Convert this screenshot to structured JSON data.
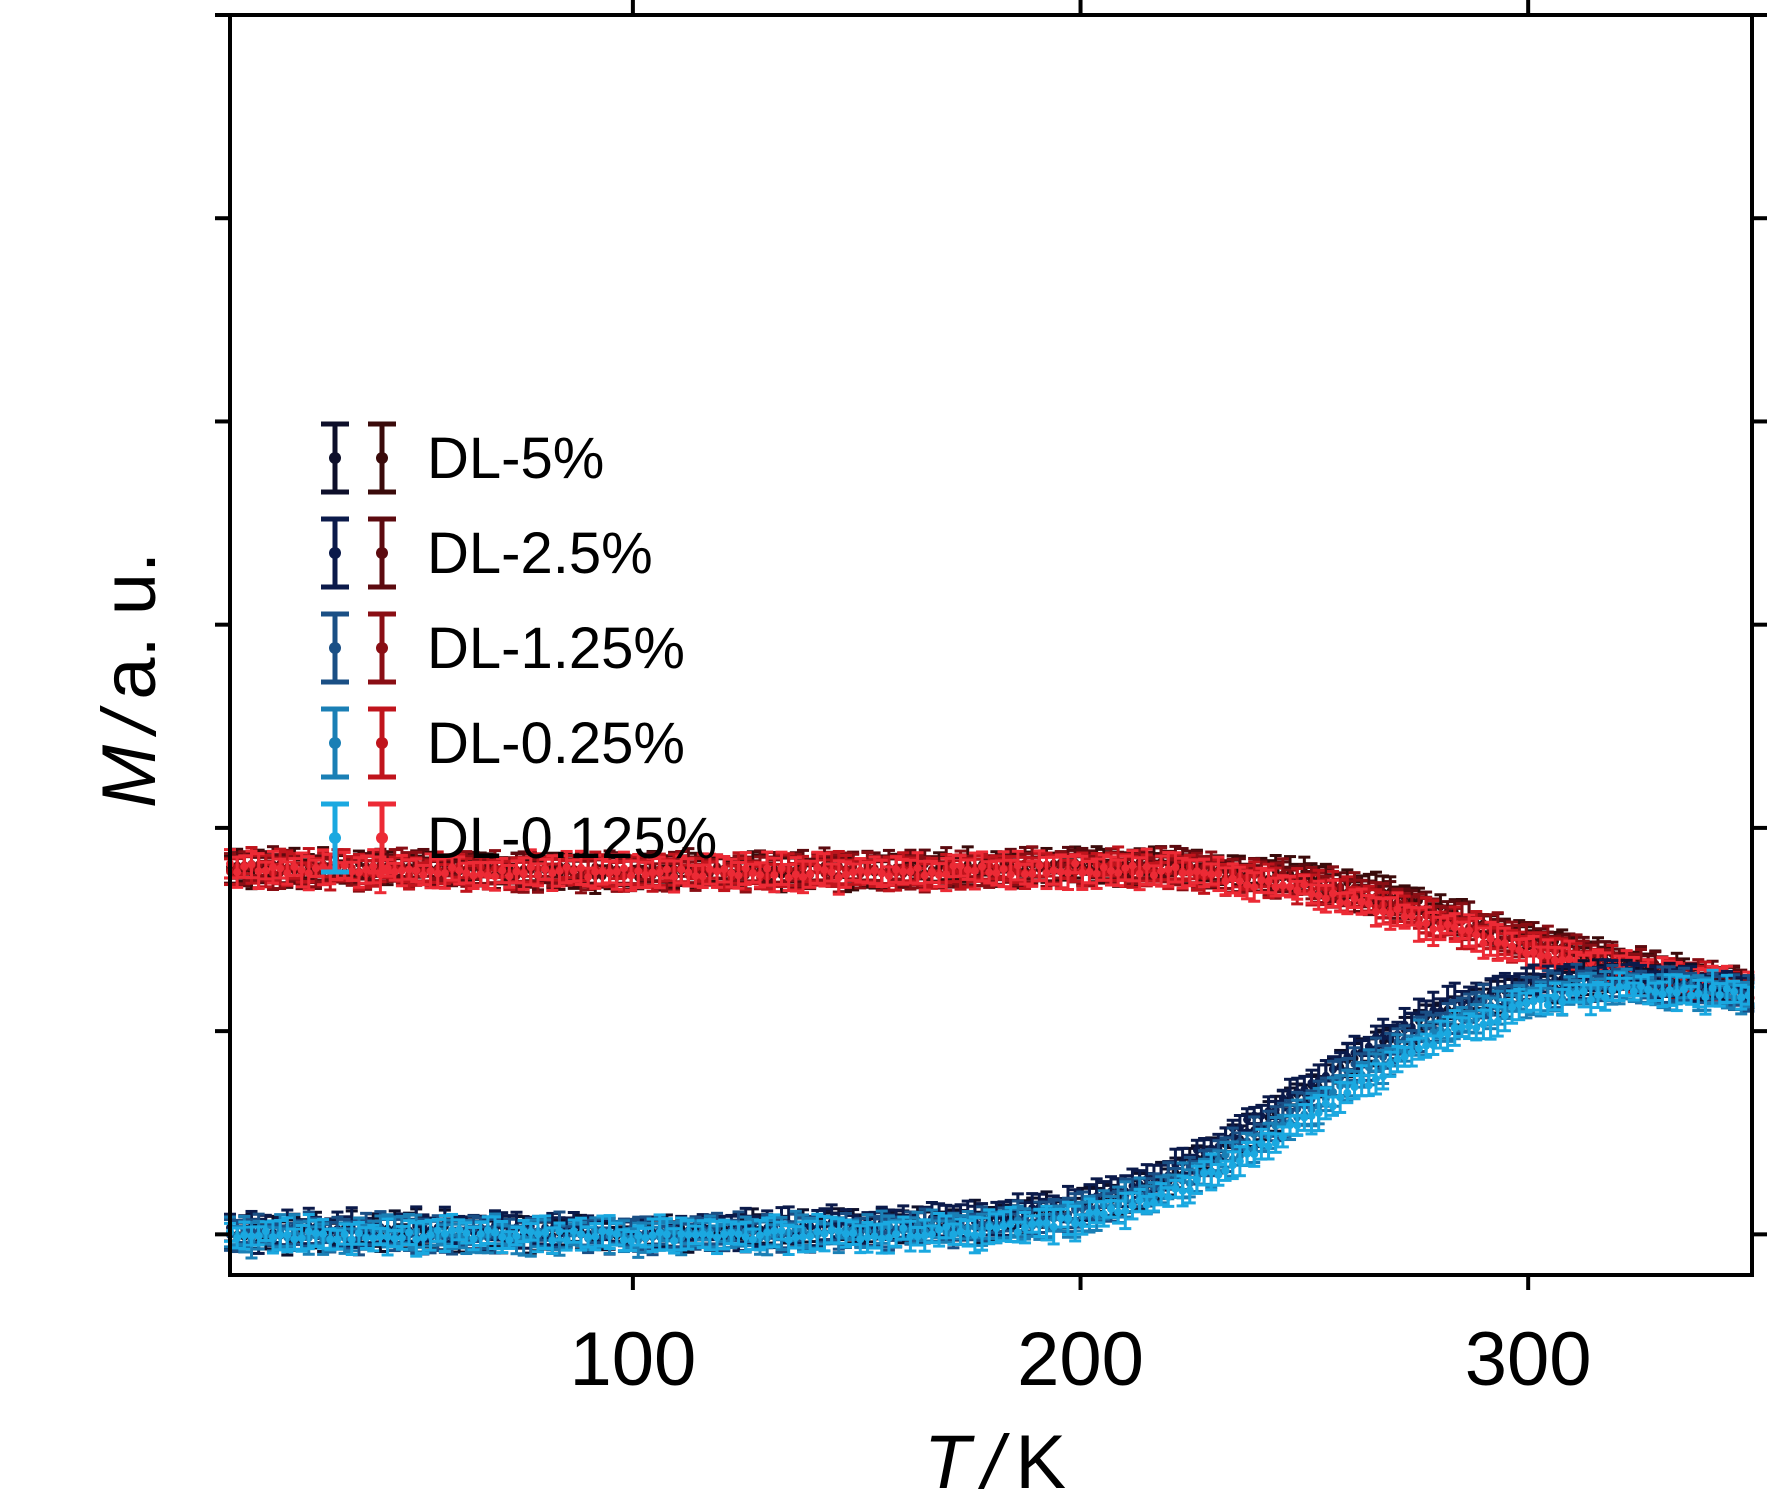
{
  "chart_data": {
    "type": "scatter",
    "xlabel_symbol": "T",
    "xlabel_sep": "/",
    "xlabel_unit": "K",
    "ylabel_symbol": "M",
    "ylabel_sep": "/",
    "ylabel_unit": "a. u.",
    "xlim": [
      10,
      350
    ],
    "ylim": [
      0,
      6.2
    ],
    "xticks": [
      100,
      200,
      300
    ],
    "xtick_labels": [
      "100",
      "200",
      "300"
    ],
    "minor_xticks": [],
    "yticks": [
      0.2,
      1.2,
      2.2,
      3.2,
      4.2,
      5.2,
      6.2
    ],
    "ytick_labels_shown": false,
    "legend_position": "left-middle",
    "legend": [
      {
        "label": "DL-5%",
        "cooling_color": "#0d0f2a",
        "heating_color": "#3a0a0a"
      },
      {
        "label": "DL-2.5%",
        "cooling_color": "#0b1a4a",
        "heating_color": "#5c0a0f"
      },
      {
        "label": "DL-1.25%",
        "cooling_color": "#1a4f85",
        "heating_color": "#8a0e14"
      },
      {
        "label": "DL-0.25%",
        "cooling_color": "#1a7fb5",
        "heating_color": "#c0141c"
      },
      {
        "label": "DL-0.125%",
        "cooling_color": "#1aa8e0",
        "heating_color": "#ec2a35"
      }
    ],
    "series": [
      {
        "name": "DL-5%",
        "branch": "upper",
        "color": "#3a0a0a",
        "x": [
          10,
          50,
          100,
          150,
          200,
          220,
          250,
          270,
          290,
          310,
          330,
          350
        ],
        "y": [
          2.0,
          2.0,
          1.98,
          1.99,
          2.01,
          2.01,
          1.96,
          1.86,
          1.72,
          1.6,
          1.5,
          1.4
        ]
      },
      {
        "name": "DL-2.5%",
        "branch": "upper",
        "color": "#5c0a0f",
        "x": [
          10,
          50,
          100,
          150,
          200,
          220,
          250,
          270,
          290,
          310,
          330,
          350
        ],
        "y": [
          2.0,
          2.0,
          1.99,
          1.99,
          2.01,
          2.01,
          1.95,
          1.85,
          1.72,
          1.6,
          1.5,
          1.4
        ]
      },
      {
        "name": "DL-1.25%",
        "branch": "upper",
        "color": "#8a0e14",
        "x": [
          10,
          50,
          100,
          150,
          200,
          220,
          250,
          270,
          290,
          310,
          330,
          350
        ],
        "y": [
          2.0,
          1.99,
          1.98,
          1.99,
          2.0,
          2.0,
          1.94,
          1.84,
          1.7,
          1.58,
          1.48,
          1.4
        ]
      },
      {
        "name": "DL-0.25%",
        "branch": "upper",
        "color": "#c0141c",
        "x": [
          10,
          50,
          100,
          150,
          200,
          220,
          250,
          270,
          290,
          310,
          330,
          350
        ],
        "y": [
          2.0,
          1.99,
          1.98,
          1.98,
          2.0,
          2.0,
          1.92,
          1.8,
          1.67,
          1.56,
          1.47,
          1.4
        ]
      },
      {
        "name": "DL-0.125%",
        "branch": "upper",
        "color": "#ec2a35",
        "x": [
          10,
          50,
          100,
          150,
          200,
          220,
          250,
          270,
          290,
          310,
          330,
          350
        ],
        "y": [
          2.0,
          1.99,
          1.98,
          1.98,
          2.0,
          1.99,
          1.9,
          1.78,
          1.65,
          1.55,
          1.46,
          1.4
        ]
      },
      {
        "name": "DL-5%",
        "branch": "lower",
        "color": "#0d0f2a",
        "x": [
          10,
          50,
          100,
          150,
          180,
          200,
          220,
          240,
          260,
          280,
          300,
          320,
          340,
          350
        ],
        "y": [
          0.2,
          0.22,
          0.2,
          0.23,
          0.26,
          0.33,
          0.48,
          0.74,
          1.04,
          1.28,
          1.42,
          1.46,
          1.42,
          1.38
        ]
      },
      {
        "name": "DL-2.5%",
        "branch": "lower",
        "color": "#0b1a4a",
        "x": [
          10,
          50,
          100,
          150,
          180,
          200,
          220,
          240,
          260,
          280,
          300,
          320,
          340,
          350
        ],
        "y": [
          0.21,
          0.23,
          0.21,
          0.24,
          0.28,
          0.35,
          0.51,
          0.78,
          1.08,
          1.31,
          1.44,
          1.47,
          1.42,
          1.38
        ]
      },
      {
        "name": "DL-1.25%",
        "branch": "lower",
        "color": "#1a4f85",
        "x": [
          10,
          50,
          100,
          150,
          180,
          200,
          220,
          240,
          260,
          280,
          300,
          320,
          340,
          350
        ],
        "y": [
          0.2,
          0.21,
          0.2,
          0.22,
          0.25,
          0.31,
          0.45,
          0.7,
          1.0,
          1.25,
          1.4,
          1.44,
          1.41,
          1.38
        ]
      },
      {
        "name": "DL-0.25%",
        "branch": "lower",
        "color": "#1a7fb5",
        "x": [
          10,
          50,
          100,
          150,
          180,
          200,
          220,
          240,
          260,
          280,
          300,
          320,
          340,
          350
        ],
        "y": [
          0.19,
          0.2,
          0.19,
          0.21,
          0.23,
          0.29,
          0.42,
          0.66,
          0.95,
          1.2,
          1.36,
          1.42,
          1.4,
          1.38
        ]
      },
      {
        "name": "DL-0.125%",
        "branch": "lower",
        "color": "#1aa8e0",
        "x": [
          10,
          50,
          100,
          150,
          180,
          200,
          220,
          240,
          260,
          280,
          300,
          320,
          340,
          350
        ],
        "y": [
          0.19,
          0.2,
          0.19,
          0.2,
          0.22,
          0.27,
          0.39,
          0.62,
          0.9,
          1.16,
          1.33,
          1.4,
          1.39,
          1.38
        ]
      }
    ]
  }
}
